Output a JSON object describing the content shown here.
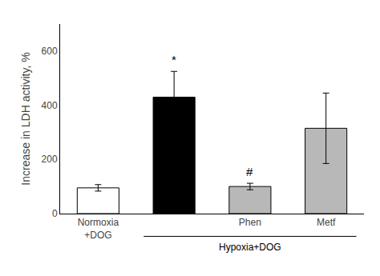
{
  "chart_data": {
    "type": "bar",
    "categories": [
      "Normoxia\n+DOG",
      null,
      "Phen",
      "Metf"
    ],
    "values": [
      95,
      430,
      100,
      315
    ],
    "errors": [
      12,
      95,
      12,
      130
    ],
    "colors": [
      "white",
      "black",
      "#b8b8b8",
      "#b8b8b8"
    ],
    "ylabel": "Increase in LDH activity, %",
    "ylim": [
      0,
      700
    ],
    "yticks": [
      0,
      200,
      400,
      600
    ],
    "grid": false,
    "annotations": [
      {
        "text": "*",
        "category": 1
      },
      {
        "text": "#",
        "category": 2
      },
      {
        "text": "Hypoxia+DOG",
        "categories": [
          1,
          3
        ]
      }
    ]
  }
}
